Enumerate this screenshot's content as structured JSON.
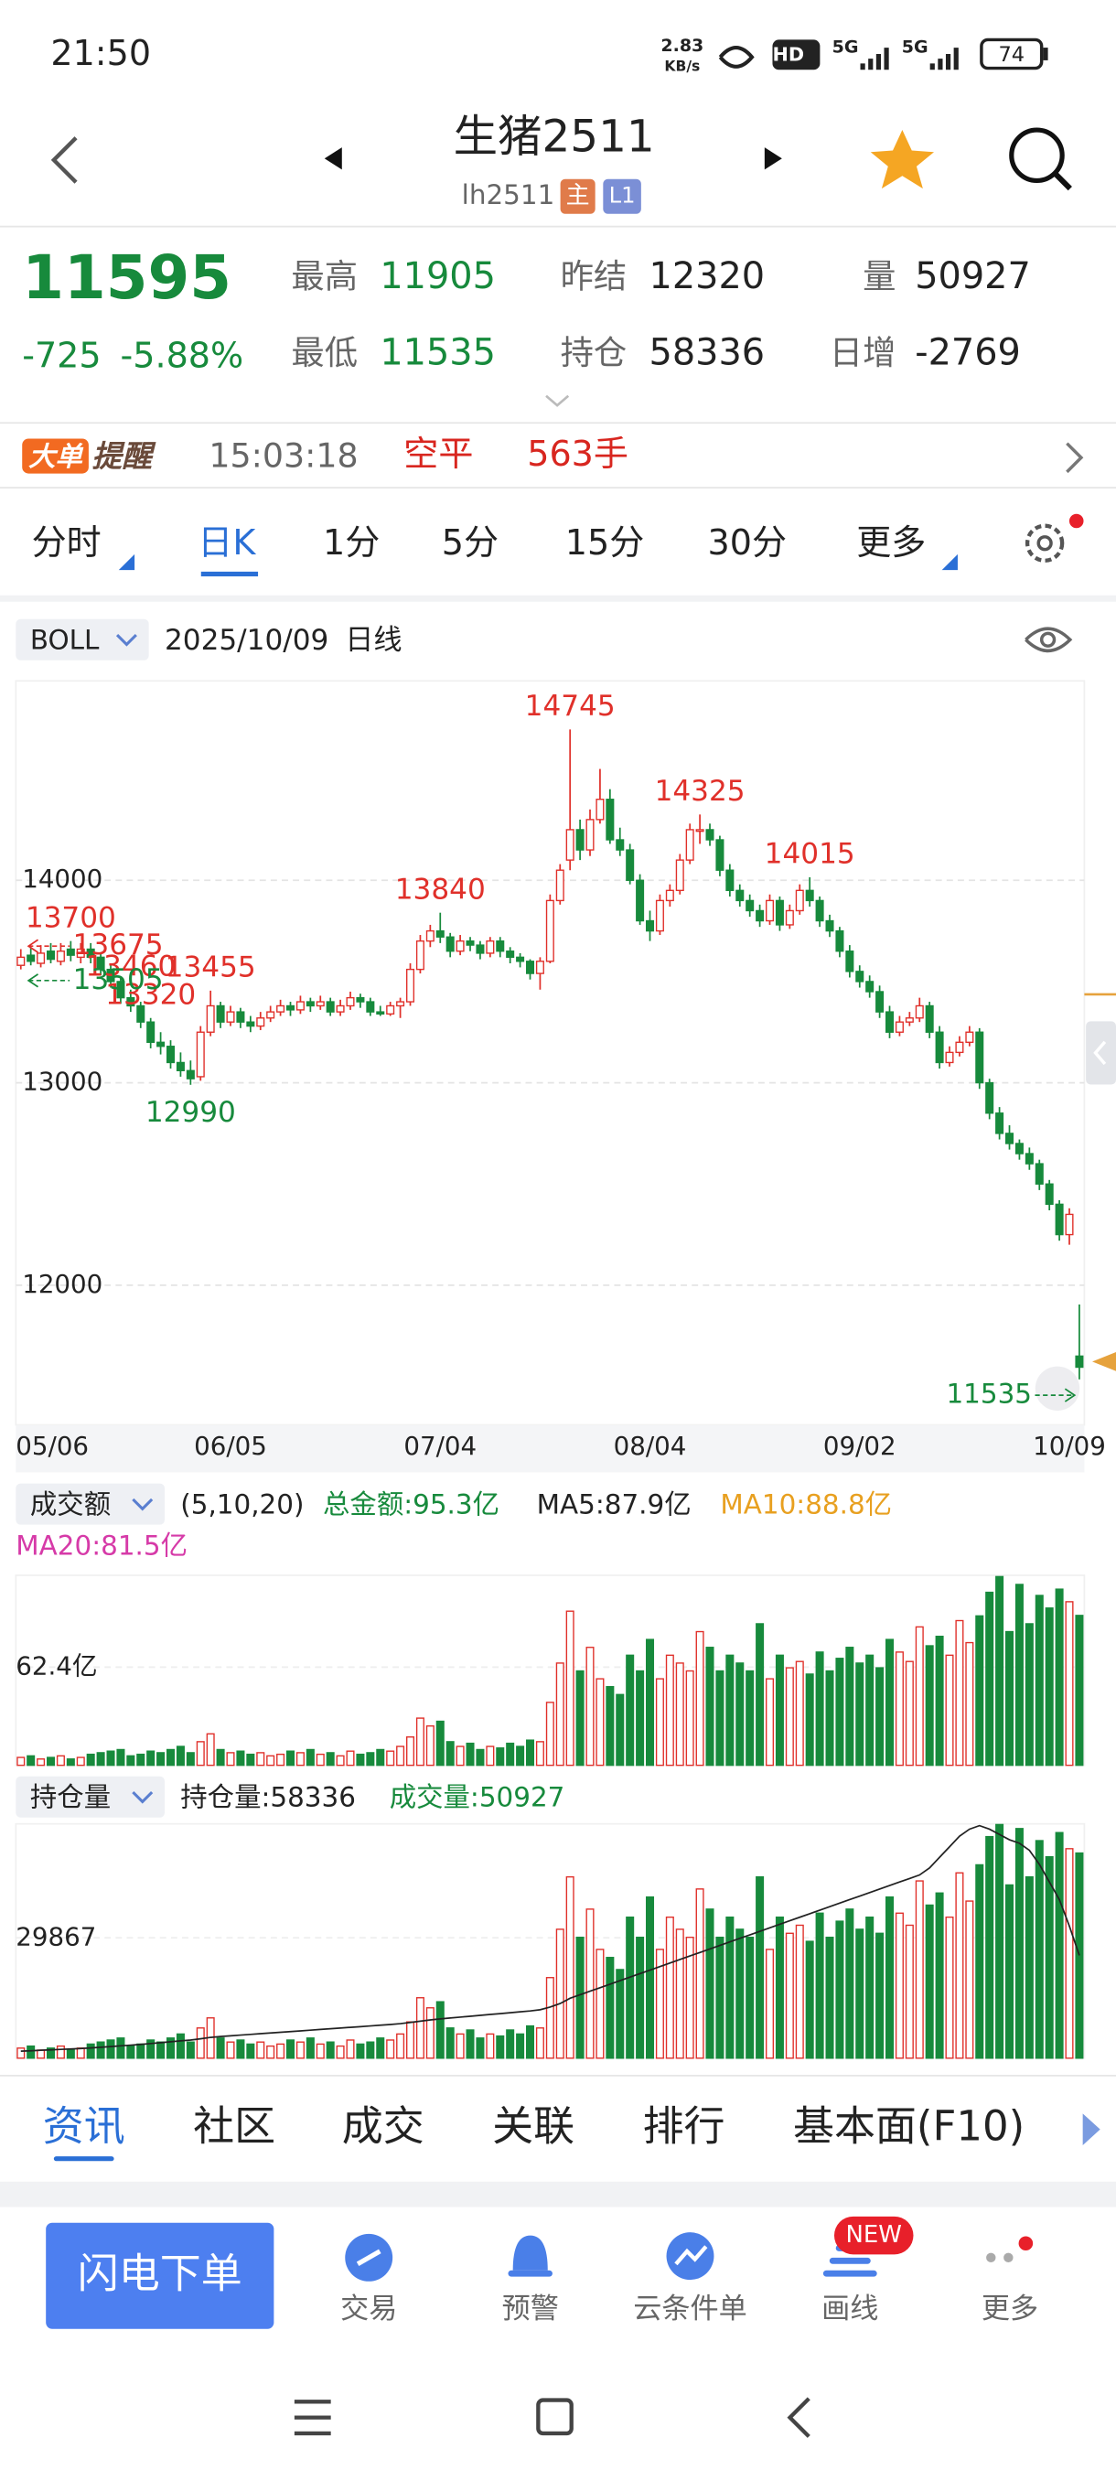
{
  "status_bar": {
    "time": "21:50",
    "speed": "2.83",
    "speed_unit": "KB/s",
    "network": "HD",
    "signal_1": "5G",
    "signal_2": "5G",
    "battery": "74"
  },
  "header": {
    "title": "生猪2511",
    "code": "lh2511",
    "badges": [
      "主",
      "L1"
    ]
  },
  "quote": {
    "price": "11595",
    "change": "-725",
    "change_pct": "-5.88%",
    "fields": [
      {
        "label": "最高",
        "value": "11905"
      },
      {
        "label": "最低",
        "value": "11535"
      },
      {
        "label": "昨结",
        "value": "12320"
      },
      {
        "label": "持仓",
        "value": "58336"
      },
      {
        "label": "量",
        "value": "50927"
      },
      {
        "label": "日增",
        "value": "-2769"
      }
    ]
  },
  "alert": {
    "badge": "大单",
    "title": "提醒",
    "time": "15:03:18",
    "action": "空平",
    "quantity": "563手"
  },
  "period_tabs": [
    "分时",
    "日K",
    "1分",
    "5分",
    "15分",
    "30分",
    "更多"
  ],
  "chart_header": {
    "indicator": "BOLL",
    "date": "2025/10/09",
    "period": "日线"
  },
  "volume_header": {
    "indicator": "成交额",
    "params": "(5,10,20)",
    "total": "总金额:95.3亿",
    "ma5": "MA5:87.9亿",
    "ma10": "MA10:88.8亿",
    "ma20": "MA20:81.5亿"
  },
  "oi_header": {
    "indicator": "持仓量",
    "open_interest": "持仓量:58336",
    "volume": "成交量:50927"
  },
  "info_tabs": [
    "资讯",
    "社区",
    "成交",
    "关联",
    "排行",
    "基本面(F10)"
  ],
  "bottom_nav": {
    "button": "闪电下单",
    "items": [
      "交易",
      "预警",
      "云条件单",
      "画线",
      "更多"
    ],
    "badge": "NEW"
  },
  "chart_data": [
    {
      "type": "candlestick",
      "up_color": "#e0302a",
      "down_color": "#178a3c",
      "grid": true,
      "ylim": [
        11310,
        14985
      ],
      "yticks": [
        12000,
        13000,
        14000
      ],
      "categories": [
        "05/06",
        null,
        null,
        null,
        null,
        null,
        null,
        null,
        null,
        null,
        null,
        null,
        null,
        null,
        null,
        null,
        null,
        null,
        null,
        null,
        null,
        "06/05",
        null,
        null,
        null,
        null,
        null,
        null,
        null,
        null,
        null,
        null,
        null,
        null,
        null,
        null,
        null,
        null,
        null,
        null,
        null,
        null,
        "07/04",
        null,
        null,
        null,
        null,
        null,
        null,
        null,
        null,
        null,
        null,
        null,
        null,
        null,
        null,
        null,
        null,
        null,
        null,
        null,
        null,
        "08/04",
        null,
        null,
        null,
        null,
        null,
        null,
        null,
        null,
        null,
        null,
        null,
        null,
        null,
        null,
        null,
        null,
        null,
        null,
        null,
        null,
        "09/02",
        null,
        null,
        null,
        null,
        null,
        null,
        null,
        null,
        null,
        null,
        null,
        null,
        null,
        null,
        null,
        null,
        null,
        null,
        null,
        null,
        "10/09"
      ],
      "candles": [
        [
          13580,
          13660,
          13560,
          13620
        ],
        [
          13630,
          13670,
          13580,
          13600
        ],
        [
          13590,
          13680,
          13570,
          13640
        ],
        [
          13650,
          13690,
          13590,
          13610
        ],
        [
          13600,
          13690,
          13580,
          13650
        ],
        [
          13660,
          13700,
          13600,
          13630
        ],
        [
          13620,
          13690,
          13590,
          13660
        ],
        [
          13660,
          13690,
          13590,
          13620
        ],
        [
          13620,
          13640,
          13530,
          13560
        ],
        [
          13560,
          13580,
          13470,
          13500
        ],
        [
          13500,
          13520,
          13390,
          13420
        ],
        [
          13420,
          13460,
          13350,
          13380
        ],
        [
          13380,
          13400,
          13270,
          13300
        ],
        [
          13300,
          13320,
          13170,
          13200
        ],
        [
          13200,
          13250,
          13140,
          13180
        ],
        [
          13180,
          13210,
          13070,
          13100
        ],
        [
          13100,
          13150,
          13030,
          13060
        ],
        [
          13060,
          13110,
          12990,
          13020
        ],
        [
          13030,
          13280,
          13010,
          13250
        ],
        [
          13250,
          13455,
          13230,
          13380
        ],
        [
          13380,
          13400,
          13270,
          13300
        ],
        [
          13300,
          13380,
          13280,
          13350
        ],
        [
          13350,
          13370,
          13270,
          13300
        ],
        [
          13300,
          13330,
          13250,
          13280
        ],
        [
          13280,
          13350,
          13260,
          13320
        ],
        [
          13320,
          13380,
          13300,
          13350
        ],
        [
          13350,
          13410,
          13330,
          13380
        ],
        [
          13380,
          13400,
          13330,
          13360
        ],
        [
          13360,
          13430,
          13340,
          13400
        ],
        [
          13400,
          13420,
          13350,
          13380
        ],
        [
          13380,
          13430,
          13360,
          13400
        ],
        [
          13400,
          13420,
          13330,
          13350
        ],
        [
          13350,
          13410,
          13330,
          13380
        ],
        [
          13380,
          13450,
          13360,
          13420
        ],
        [
          13420,
          13440,
          13370,
          13400
        ],
        [
          13400,
          13420,
          13330,
          13350
        ],
        [
          13350,
          13380,
          13330,
          13340
        ],
        [
          13340,
          13400,
          13330,
          13380
        ],
        [
          13380,
          13420,
          13320,
          13400
        ],
        [
          13400,
          13590,
          13380,
          13560
        ],
        [
          13560,
          13730,
          13540,
          13700
        ],
        [
          13700,
          13780,
          13670,
          13750
        ],
        [
          13750,
          13840,
          13690,
          13720
        ],
        [
          13720,
          13740,
          13620,
          13650
        ],
        [
          13650,
          13730,
          13630,
          13700
        ],
        [
          13700,
          13720,
          13650,
          13680
        ],
        [
          13680,
          13700,
          13610,
          13640
        ],
        [
          13640,
          13720,
          13620,
          13700
        ],
        [
          13700,
          13720,
          13620,
          13650
        ],
        [
          13650,
          13670,
          13590,
          13620
        ],
        [
          13620,
          13640,
          13570,
          13600
        ],
        [
          13600,
          13610,
          13510,
          13540
        ],
        [
          13540,
          13620,
          13460,
          13600
        ],
        [
          13600,
          13930,
          13590,
          13900
        ],
        [
          13900,
          14080,
          13880,
          14050
        ],
        [
          14100,
          14745,
          14050,
          14250
        ],
        [
          14250,
          14300,
          14100,
          14150
        ],
        [
          14150,
          14350,
          14120,
          14300
        ],
        [
          14300,
          14550,
          14280,
          14400
        ],
        [
          14400,
          14450,
          14180,
          14200
        ],
        [
          14200,
          14260,
          14120,
          14150
        ],
        [
          14150,
          14180,
          13980,
          14000
        ],
        [
          14000,
          14030,
          13780,
          13800
        ],
        [
          13800,
          13850,
          13700,
          13750
        ],
        [
          13750,
          13930,
          13730,
          13900
        ],
        [
          13900,
          13980,
          13870,
          13950
        ],
        [
          13950,
          14130,
          13930,
          14100
        ],
        [
          14100,
          14280,
          14080,
          14250
        ],
        [
          14250,
          14325,
          14180,
          14250
        ],
        [
          14250,
          14280,
          14170,
          14200
        ],
        [
          14200,
          14220,
          14020,
          14050
        ],
        [
          14050,
          14080,
          13920,
          13950
        ],
        [
          13950,
          13980,
          13870,
          13900
        ],
        [
          13900,
          13930,
          13820,
          13850
        ],
        [
          13850,
          13880,
          13770,
          13800
        ],
        [
          13800,
          13930,
          13780,
          13900
        ],
        [
          13900,
          13920,
          13750,
          13780
        ],
        [
          13780,
          13880,
          13760,
          13850
        ],
        [
          13850,
          13980,
          13830,
          13950
        ],
        [
          13950,
          14015,
          13870,
          13900
        ],
        [
          13900,
          13920,
          13770,
          13800
        ],
        [
          13800,
          13830,
          13720,
          13750
        ],
        [
          13750,
          13770,
          13620,
          13650
        ],
        [
          13650,
          13680,
          13520,
          13550
        ],
        [
          13550,
          13580,
          13470,
          13500
        ],
        [
          13500,
          13530,
          13420,
          13450
        ],
        [
          13450,
          13480,
          13320,
          13350
        ],
        [
          13350,
          13380,
          13220,
          13250
        ],
        [
          13250,
          13330,
          13230,
          13300
        ],
        [
          13300,
          13350,
          13280,
          13320
        ],
        [
          13320,
          13420,
          13300,
          13380
        ],
        [
          13380,
          13400,
          13220,
          13250
        ],
        [
          13250,
          13280,
          13070,
          13100
        ],
        [
          13100,
          13180,
          13080,
          13150
        ],
        [
          13150,
          13230,
          13130,
          13200
        ],
        [
          13200,
          13280,
          13180,
          13250
        ],
        [
          13250,
          13270,
          12970,
          13000
        ],
        [
          13000,
          13020,
          12820,
          12850
        ],
        [
          12850,
          12880,
          12720,
          12750
        ],
        [
          12750,
          12790,
          12670,
          12700
        ],
        [
          12700,
          12720,
          12620,
          12650
        ],
        [
          12650,
          12680,
          12570,
          12600
        ],
        [
          12600,
          12620,
          12470,
          12500
        ],
        [
          12500,
          12520,
          12370,
          12400
        ],
        [
          12400,
          12420,
          12220,
          12250
        ],
        [
          12250,
          12380,
          12200,
          12350
        ],
        [
          11650,
          11905,
          11535,
          11595
        ]
      ],
      "annotations": [
        14745,
        13455,
        13840,
        14325,
        14015,
        12990,
        13320,
        13460,
        13700,
        11535
      ],
      "edge_labels": [
        13675,
        13505
      ]
    },
    {
      "type": "bar",
      "ylim": [
        0,
        120.8
      ],
      "yticks": [
        {
          "value": 62.4,
          "label": "62.4亿"
        }
      ],
      "values": [
        5,
        6,
        4,
        5,
        6,
        4,
        5,
        7,
        8,
        9,
        10,
        6,
        7,
        9,
        8,
        10,
        12,
        8,
        15,
        20,
        10,
        8,
        9,
        7,
        8,
        6,
        7,
        9,
        8,
        10,
        7,
        8,
        6,
        9,
        7,
        8,
        10,
        9,
        12,
        18,
        30,
        25,
        28,
        15,
        12,
        14,
        10,
        12,
        11,
        14,
        12,
        16,
        15,
        40,
        65,
        98,
        60,
        75,
        55,
        50,
        45,
        70,
        60,
        80,
        55,
        70,
        65,
        60,
        85,
        75,
        60,
        70,
        65,
        60,
        90,
        55,
        70,
        62,
        66,
        58,
        72,
        60,
        68,
        75,
        65,
        70,
        62,
        80,
        72,
        66,
        88,
        76,
        82,
        70,
        92,
        78,
        95,
        110,
        120,
        85,
        115,
        90,
        108,
        100,
        112,
        104,
        95.3
      ]
    },
    {
      "type": "bar_line",
      "line_color": "#222",
      "ylim": [
        0,
        58164
      ],
      "yticks": [
        29867
      ],
      "y2lim": [
        0,
        133000
      ],
      "values": [
        2500,
        3000,
        2000,
        2500,
        3000,
        2000,
        2500,
        3500,
        4000,
        4500,
        5000,
        3000,
        3500,
        4500,
        4000,
        5000,
        6000,
        4000,
        7500,
        10000,
        5000,
        4000,
        4500,
        3500,
        4000,
        3000,
        3500,
        4500,
        4000,
        5000,
        3500,
        4000,
        3000,
        4500,
        3500,
        4000,
        5000,
        4500,
        6000,
        9000,
        15000,
        12500,
        14000,
        7500,
        6000,
        7000,
        5000,
        6000,
        5500,
        7000,
        6000,
        8000,
        7500,
        20000,
        32000,
        45000,
        30000,
        37000,
        27000,
        25000,
        22000,
        35000,
        30000,
        40000,
        27000,
        35000,
        32000,
        30000,
        42000,
        37000,
        30000,
        35000,
        32000,
        30000,
        45000,
        27000,
        35000,
        31000,
        33000,
        29000,
        36000,
        30000,
        34000,
        37000,
        32000,
        35000,
        31000,
        40000,
        36000,
        33000,
        44000,
        38000,
        41000,
        35000,
        46000,
        39000,
        48000,
        55000,
        58000,
        43000,
        57000,
        45000,
        54000,
        50000,
        56000,
        52000,
        50927
      ],
      "line_values": [
        4000,
        4200,
        4500,
        4700,
        5000,
        5200,
        5500,
        5800,
        6200,
        6600,
        7000,
        7400,
        7800,
        8300,
        8800,
        9300,
        9800,
        10300,
        11000,
        11800,
        12300,
        12700,
        13100,
        13500,
        13900,
        14300,
        14700,
        15100,
        15500,
        15900,
        16300,
        16700,
        17100,
        17500,
        17900,
        18300,
        18700,
        19100,
        19600,
        20300,
        21000,
        21700,
        22300,
        22800,
        23300,
        23800,
        24300,
        24800,
        25300,
        25800,
        26300,
        26800,
        27500,
        29000,
        31000,
        34000,
        36000,
        38000,
        40000,
        42000,
        44000,
        46000,
        48000,
        50000,
        52000,
        54000,
        56000,
        58000,
        60000,
        62000,
        64000,
        66000,
        68000,
        70000,
        72000,
        74000,
        76000,
        78000,
        80000,
        82000,
        84000,
        86000,
        88000,
        90000,
        92000,
        94000,
        96000,
        98000,
        100000,
        102000,
        104000,
        108000,
        114000,
        120000,
        126000,
        130000,
        132000,
        130000,
        127000,
        124000,
        122000,
        118000,
        110000,
        100000,
        90000,
        75000,
        58336
      ]
    }
  ]
}
